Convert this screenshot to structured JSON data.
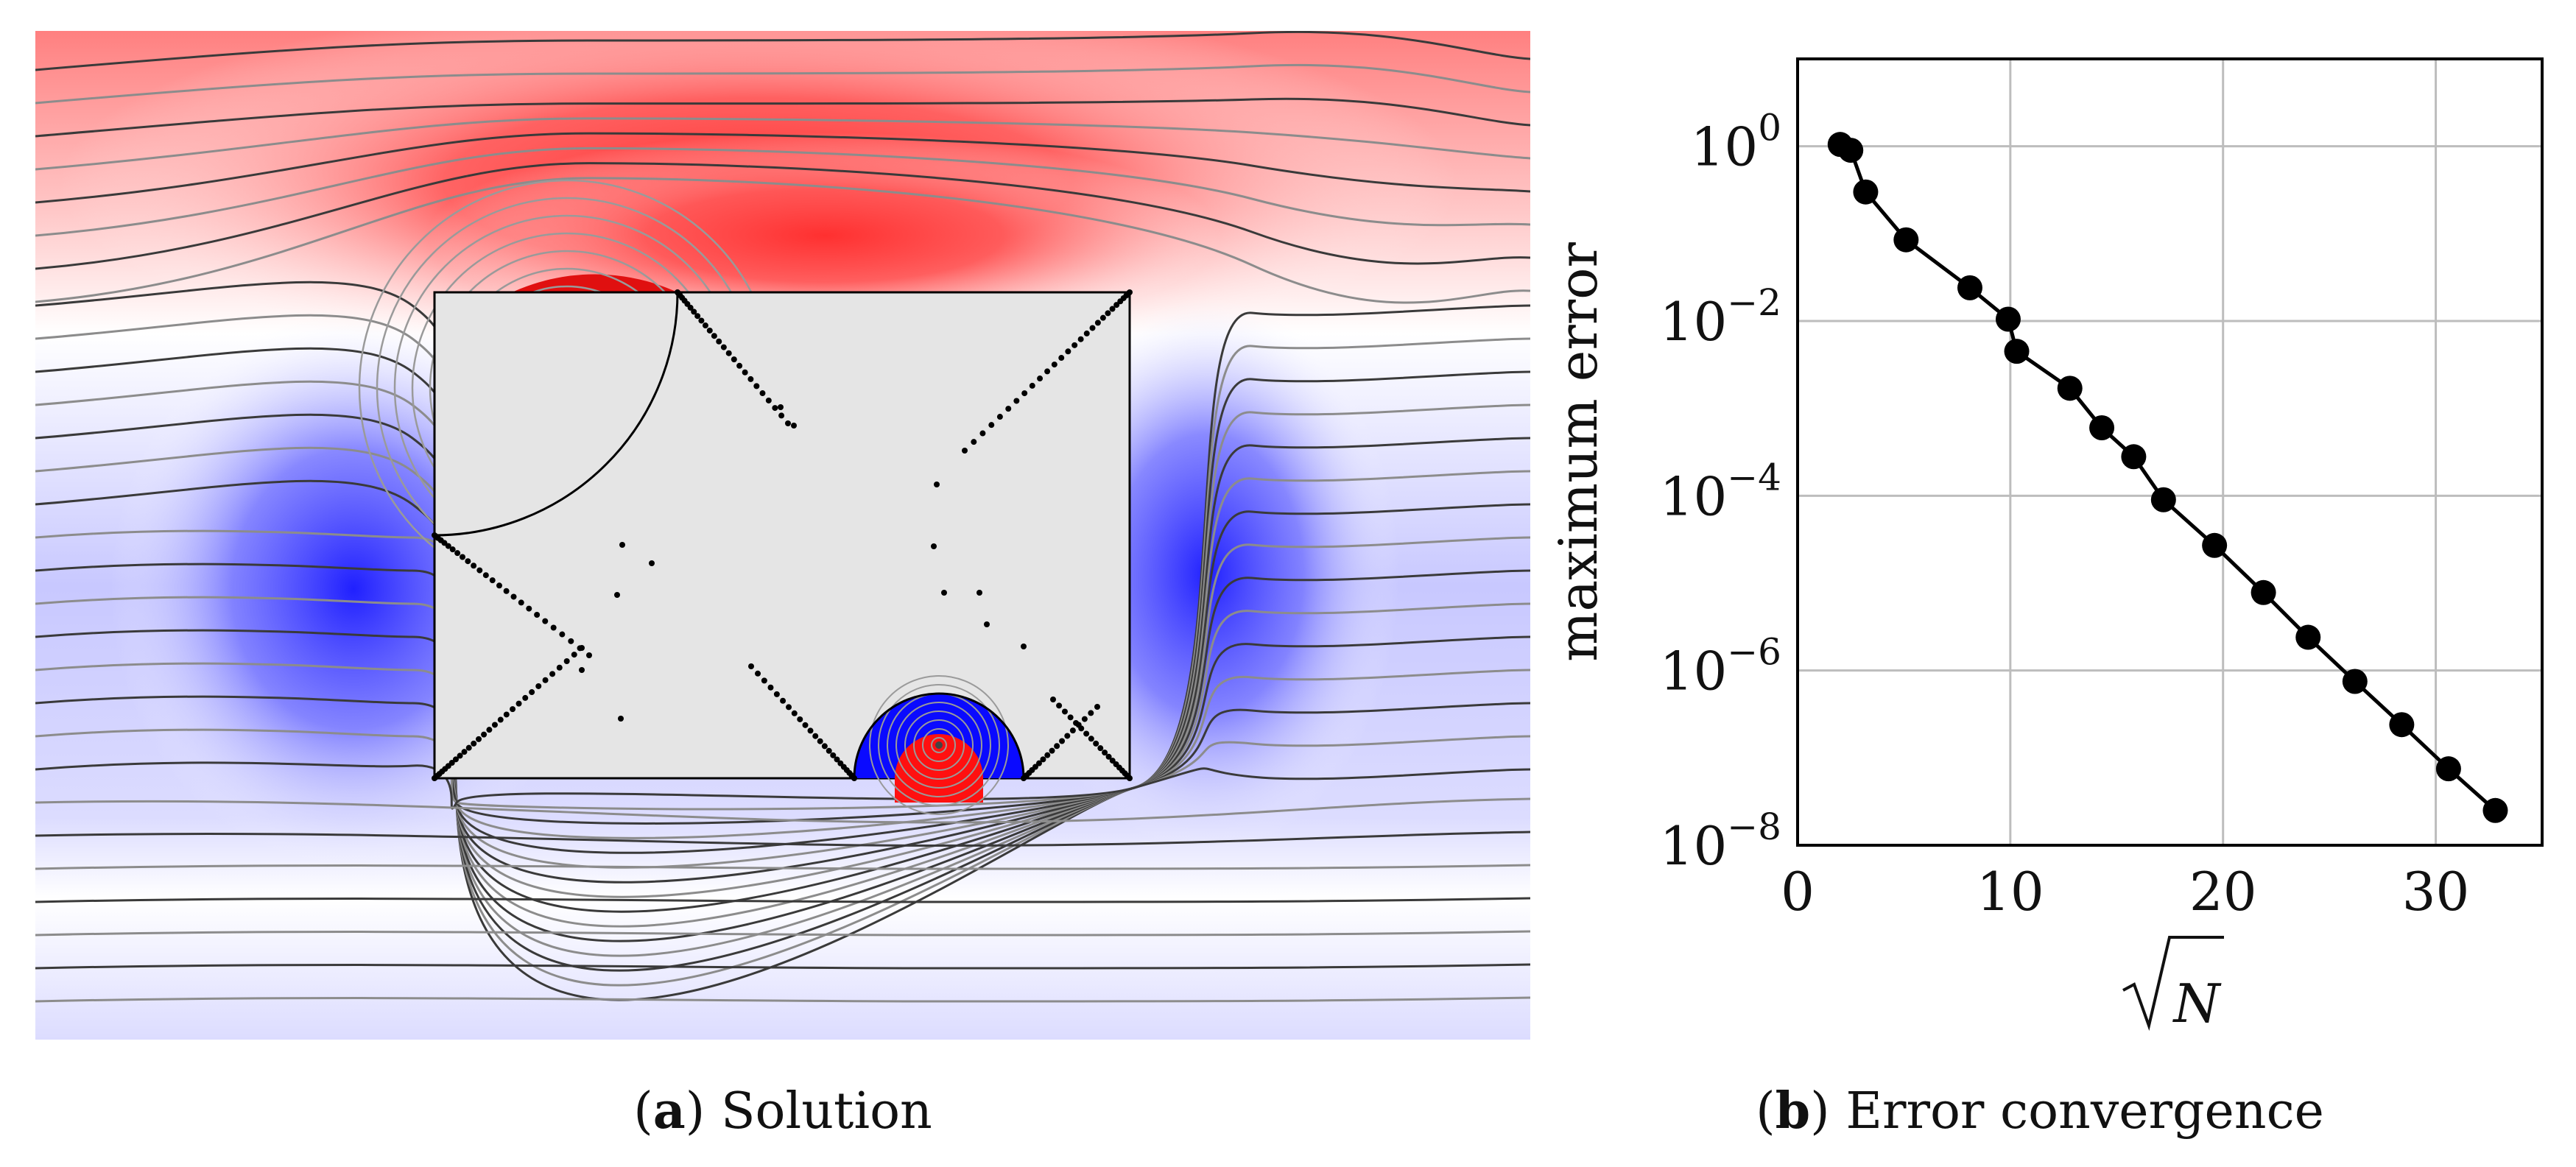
{
  "panel_a": {
    "caption_letter": "a",
    "caption_text": "Solution",
    "colors": {
      "positive": "#ff1a1a",
      "negative": "#1a1aff",
      "obstacle": "#e5e5e5",
      "contour_dark": "#3a3a3a",
      "contour_light": "#8c8c8c"
    }
  },
  "panel_b": {
    "caption_letter": "b",
    "caption_text": "Error convergence"
  },
  "chart_data": {
    "type": "line",
    "title": "",
    "xlabel": "√N",
    "ylabel": "maximum error",
    "xlim": [
      0,
      35
    ],
    "ylim_log10": [
      -8,
      1
    ],
    "xscale": "linear",
    "yscale": "log",
    "grid": true,
    "x_ticks": [
      0,
      10,
      20,
      30
    ],
    "x_tick_labels": [
      "0",
      "10",
      "20",
      "30"
    ],
    "y_ticks_log10": [
      0,
      -2,
      -4,
      -6,
      -8
    ],
    "y_tick_labels": [
      {
        "base": "10",
        "exp": "0"
      },
      {
        "base": "10",
        "exp": "−2"
      },
      {
        "base": "10",
        "exp": "−4"
      },
      {
        "base": "10",
        "exp": "−6"
      },
      {
        "base": "10",
        "exp": "−8"
      }
    ],
    "series": [
      {
        "name": "maximum error",
        "color": "#000000",
        "x": [
          2.0,
          2.5,
          3.2,
          5.1,
          8.1,
          9.9,
          10.3,
          12.8,
          14.3,
          15.8,
          17.2,
          19.6,
          21.9,
          24.0,
          26.2,
          28.4,
          30.6,
          32.8
        ],
        "y": [
          1.05,
          0.9,
          0.3,
          0.085,
          0.024,
          0.0105,
          0.0045,
          0.0017,
          0.0006,
          0.00028,
          9e-05,
          2.7e-05,
          7.8e-06,
          2.4e-06,
          7.5e-07,
          2.4e-07,
          7.5e-08,
          2.5e-08
        ]
      }
    ]
  }
}
